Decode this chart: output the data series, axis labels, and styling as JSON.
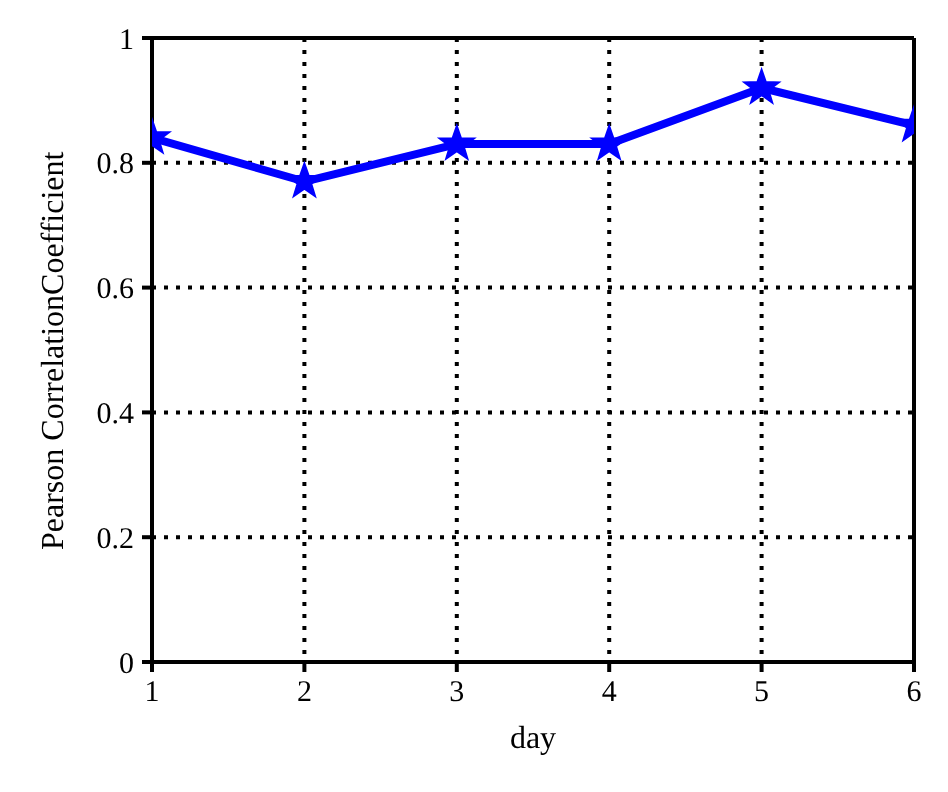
{
  "chart_data": {
    "type": "line",
    "xlabel": "day",
    "ylabel": "Pearson CorrelationCoefficient",
    "x": [
      1,
      2,
      3,
      4,
      5,
      6
    ],
    "series": [
      {
        "color": "#0000ff",
        "values": [
          0.84,
          0.77,
          0.83,
          0.83,
          0.92,
          0.86
        ]
      }
    ],
    "xlim": [
      1,
      6
    ],
    "xticks": [
      1,
      2,
      3,
      4,
      5,
      6
    ],
    "ylim": [
      0,
      1
    ],
    "yticks": [
      0,
      0.2,
      0.4,
      0.6,
      0.8,
      1
    ],
    "grid": true,
    "marker": "star",
    "line_style": "solid",
    "legend": false
  }
}
